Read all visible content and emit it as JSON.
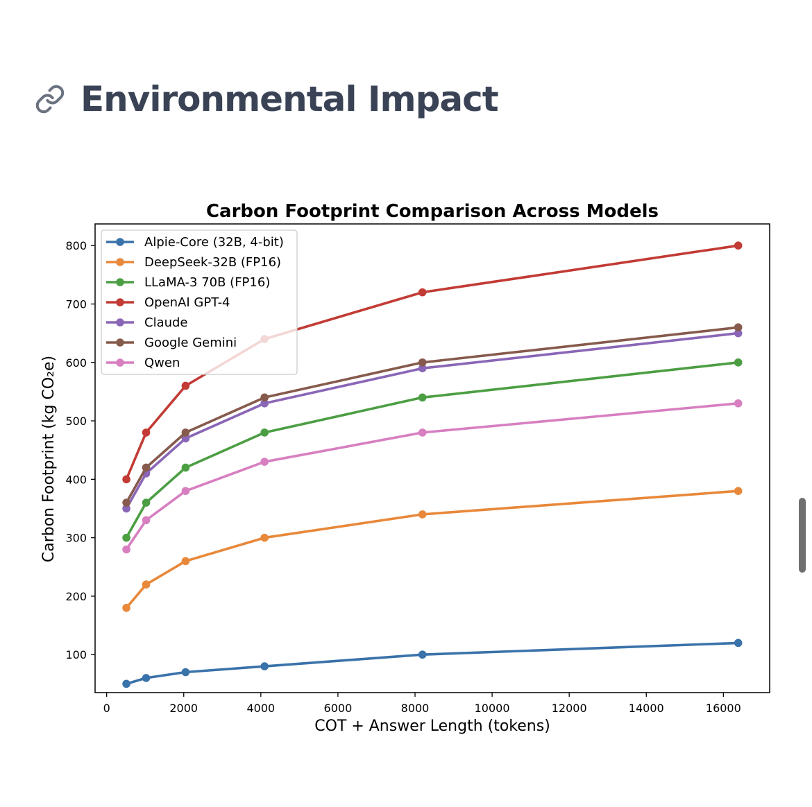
{
  "page": {
    "heading": "Environmental Impact",
    "heading_icon": "link-icon"
  },
  "chart_data": {
    "type": "line",
    "title": "Carbon Footprint Comparison Across Models",
    "xlabel": "COT + Answer Length (tokens)",
    "ylabel": "Carbon Footprint (kg CO₂e)",
    "xlim": [
      -300,
      17200
    ],
    "ylim": [
      35,
      837
    ],
    "xticks": [
      0,
      2000,
      4000,
      6000,
      8000,
      10000,
      12000,
      14000,
      16000
    ],
    "yticks": [
      100,
      200,
      300,
      400,
      500,
      600,
      700,
      800
    ],
    "x": [
      512,
      1024,
      2048,
      4096,
      8192,
      16384
    ],
    "grid": false,
    "legend_position": "upper-left",
    "series": [
      {
        "name": "Alpie-Core (32B, 4-bit)",
        "color": "#3a72aa",
        "values": [
          50,
          60,
          70,
          80,
          100,
          120
        ]
      },
      {
        "name": "DeepSeek-32B (FP16)",
        "color": "#e8883a",
        "values": [
          180,
          220,
          260,
          300,
          340,
          380
        ]
      },
      {
        "name": "LLaMA-3 70B (FP16)",
        "color": "#4c9e43",
        "values": [
          300,
          360,
          420,
          480,
          540,
          600
        ]
      },
      {
        "name": "OpenAI GPT-4",
        "color": "#c23b35",
        "values": [
          400,
          480,
          560,
          640,
          720,
          800
        ]
      },
      {
        "name": "Claude",
        "color": "#8a66b6",
        "values": [
          350,
          410,
          470,
          530,
          590,
          650
        ]
      },
      {
        "name": "Google Gemini",
        "color": "#865a4c",
        "values": [
          360,
          420,
          480,
          540,
          600,
          660
        ]
      },
      {
        "name": "Qwen",
        "color": "#d77fc1",
        "values": [
          280,
          330,
          380,
          430,
          480,
          530
        ]
      }
    ]
  }
}
